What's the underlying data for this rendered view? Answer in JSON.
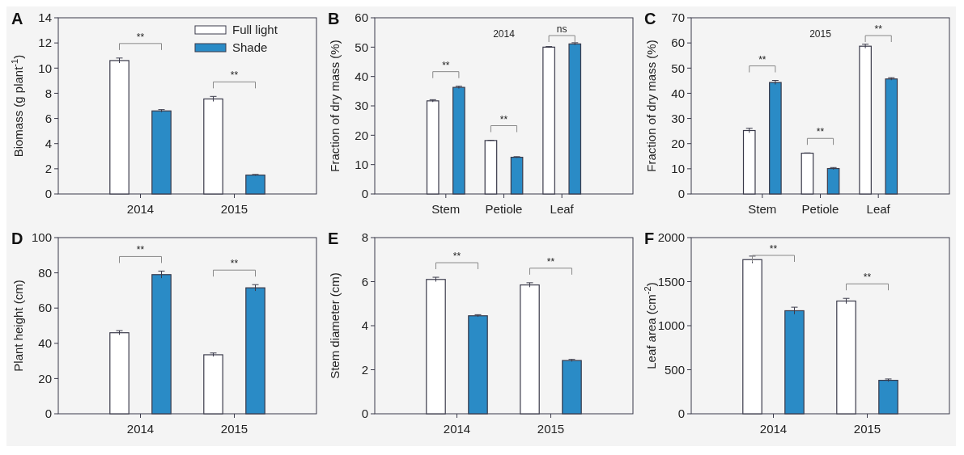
{
  "chart_data": [
    {
      "type": "bar",
      "title": "A",
      "ylabel": "Biomass (g plant$^{-1}$)",
      "categories": [
        "2014",
        "2015"
      ],
      "ylim": [
        0,
        14
      ],
      "yticks": [
        0,
        2,
        4,
        6,
        8,
        10,
        12,
        14
      ],
      "legend": "top right",
      "series": [
        {
          "name": "Full light",
          "color": "#ffffff",
          "values": [
            10.6,
            7.55
          ],
          "errors": [
            0.2,
            0.2
          ]
        },
        {
          "name": "Shade",
          "color": "#2a8bc6",
          "values": [
            6.6,
            1.5
          ],
          "errors": [
            0.1,
            0.05
          ]
        }
      ],
      "annotations": [
        "**",
        "**"
      ]
    },
    {
      "type": "bar",
      "title": "B",
      "subtitle": "2014",
      "ylabel": "Fraction of dry mass (%)",
      "categories": [
        "Stem",
        "Petiole",
        "Leaf"
      ],
      "ylim": [
        0,
        60
      ],
      "yticks": [
        0,
        10,
        20,
        30,
        40,
        50,
        60
      ],
      "series": [
        {
          "color": "#ffffff",
          "values": [
            31.7,
            18.2,
            50.0
          ],
          "errors": [
            0.4,
            0.1,
            0.2
          ]
        },
        {
          "color": "#2a8bc6",
          "values": [
            36.3,
            12.5,
            51.1
          ],
          "errors": [
            0.4,
            0.2,
            0.4
          ]
        }
      ],
      "annotations": [
        "**",
        "**",
        "ns"
      ]
    },
    {
      "type": "bar",
      "title": "C",
      "subtitle": "2015",
      "ylabel": "Fraction of dry mass (%)",
      "categories": [
        "Stem",
        "Petiole",
        "Leaf"
      ],
      "ylim": [
        0,
        70
      ],
      "yticks": [
        0,
        10,
        20,
        30,
        40,
        50,
        60,
        70
      ],
      "series": [
        {
          "color": "#ffffff",
          "values": [
            25.2,
            16.2,
            58.7
          ],
          "errors": [
            0.9,
            0.1,
            0.8
          ]
        },
        {
          "color": "#2a8bc6",
          "values": [
            44.3,
            10.1,
            45.7
          ],
          "errors": [
            0.8,
            0.4,
            0.5
          ]
        }
      ],
      "annotations": [
        "**",
        "**",
        "**"
      ]
    },
    {
      "type": "bar",
      "title": "D",
      "ylabel": "Plant height (cm)",
      "categories": [
        "2014",
        "2015"
      ],
      "ylim": [
        0,
        100
      ],
      "yticks": [
        0,
        20,
        40,
        60,
        80,
        100
      ],
      "series": [
        {
          "color": "#ffffff",
          "values": [
            46,
            33.5
          ],
          "errors": [
            1.2,
            1
          ]
        },
        {
          "color": "#2a8bc6",
          "values": [
            79,
            71.5
          ],
          "errors": [
            2,
            1.8
          ]
        }
      ],
      "annotations": [
        "**",
        "**"
      ]
    },
    {
      "type": "bar",
      "title": "E",
      "ylabel": "Stem diameter (cm)",
      "categories": [
        "2014",
        "2015"
      ],
      "ylim": [
        0,
        8
      ],
      "yticks": [
        0,
        2,
        4,
        6,
        8
      ],
      "series": [
        {
          "color": "#ffffff",
          "values": [
            6.1,
            5.85
          ],
          "errors": [
            0.1,
            0.1
          ]
        },
        {
          "color": "#2a8bc6",
          "values": [
            4.45,
            2.42
          ],
          "errors": [
            0.05,
            0.05
          ]
        }
      ],
      "annotations": [
        "**",
        "**"
      ]
    },
    {
      "type": "bar",
      "title": "F",
      "ylabel": "Leaf area (cm$^{-2}$)",
      "categories": [
        "2014",
        "2015"
      ],
      "ylim": [
        0,
        2000
      ],
      "yticks": [
        0,
        500,
        1000,
        1500,
        2000
      ],
      "series": [
        {
          "color": "#ffffff",
          "values": [
            1750,
            1280
          ],
          "errors": [
            40,
            30
          ]
        },
        {
          "color": "#2a8bc6",
          "values": [
            1170,
            380
          ],
          "errors": [
            40,
            15
          ]
        }
      ],
      "annotations": [
        "**",
        "**"
      ]
    }
  ]
}
